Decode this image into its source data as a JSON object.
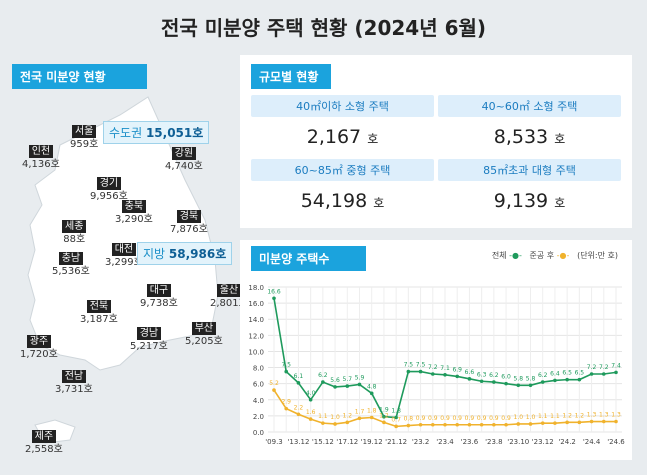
{
  "title": "전국 미분양 주택 현황  (2024년 6월)",
  "map": {
    "tag": "전국 미분양 현황",
    "capital": {
      "label": "수도권",
      "value": "15,051호"
    },
    "local": {
      "label": "지방",
      "value": "58,986호"
    },
    "regions": [
      {
        "name": "서울",
        "value": "959호"
      },
      {
        "name": "인천",
        "value": "4,136호"
      },
      {
        "name": "경기",
        "value": "9,956호"
      },
      {
        "name": "강원",
        "value": "4,740호"
      },
      {
        "name": "충북",
        "value": "3,290호"
      },
      {
        "name": "경북",
        "value": "7,876호"
      },
      {
        "name": "세종",
        "value": "88호"
      },
      {
        "name": "충남",
        "value": "5,536호"
      },
      {
        "name": "대전",
        "value": "3,299호"
      },
      {
        "name": "대구",
        "value": "9,738호"
      },
      {
        "name": "울산",
        "value": "2,801호"
      },
      {
        "name": "전북",
        "value": "3,187호"
      },
      {
        "name": "광주",
        "value": "1,720호"
      },
      {
        "name": "경남",
        "value": "5,217호"
      },
      {
        "name": "부산",
        "value": "5,205호"
      },
      {
        "name": "전남",
        "value": "3,731호"
      },
      {
        "name": "제주",
        "value": "2,558호"
      }
    ]
  },
  "size": {
    "tag": "규모별 현황",
    "unit": "호",
    "cells": [
      {
        "label": "40㎡이하 소형 주택",
        "value": "2,167"
      },
      {
        "label": "40~60㎡ 소형 주택",
        "value": "8,533"
      },
      {
        "label": "60~85㎡ 중형 주택",
        "value": "54,198"
      },
      {
        "label": "85㎡초과 대형 주택",
        "value": "9,139"
      }
    ]
  },
  "chart_tag": "미분양 주택수",
  "chart_data": {
    "type": "line",
    "unit_note": "(단위:만 호)",
    "ylim": [
      0,
      18
    ],
    "yticks": [
      "0.0",
      "2.0",
      "4.0",
      "6.0",
      "8.0",
      "10.0",
      "12.0",
      "14.0",
      "16.0",
      "18.0"
    ],
    "grid": true,
    "legend": "top-right",
    "categories": [
      "'09.3",
      "",
      "'13.12",
      "",
      "'15.12",
      "",
      "'17.12",
      "",
      "'19.12",
      "",
      "'21.12",
      "",
      "'23.2",
      "",
      "'23.4",
      "",
      "'23.6",
      "",
      "'23.8",
      "",
      "'23.10",
      "",
      "'23.12",
      "",
      "'24.2",
      "",
      "'24.4",
      "",
      "'24.6"
    ],
    "series": [
      {
        "name": "전체",
        "color": "#1e9a5c",
        "values": [
          16.6,
          7.5,
          6.1,
          4.0,
          6.2,
          5.6,
          5.7,
          5.9,
          4.8,
          1.9,
          1.8,
          7.5,
          7.5,
          7.2,
          7.1,
          6.9,
          6.6,
          6.3,
          6.2,
          6.0,
          5.8,
          5.8,
          6.2,
          6.4,
          6.5,
          6.5,
          7.2,
          7.2,
          7.4
        ]
      },
      {
        "name": "준공 후",
        "color": "#f0b22c",
        "values": [
          5.2,
          2.9,
          2.2,
          1.6,
          1.1,
          1.0,
          1.2,
          1.7,
          1.8,
          1.2,
          0.7,
          0.8,
          0.9,
          0.9,
          0.9,
          0.9,
          0.9,
          0.9,
          0.9,
          0.9,
          1.0,
          1.0,
          1.1,
          1.1,
          1.2,
          1.2,
          1.3,
          1.3,
          1.3
        ]
      }
    ]
  }
}
